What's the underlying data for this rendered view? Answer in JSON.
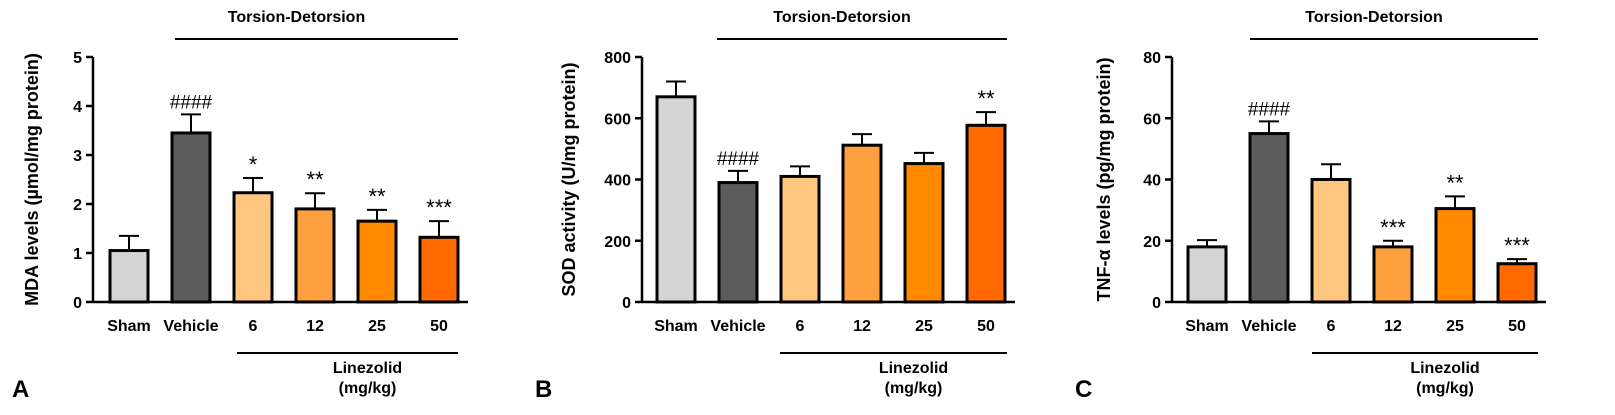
{
  "colors": {
    "sham": "#d4d4d4",
    "vehicle": "#5c5c5c",
    "dose6": "#ffc680",
    "dose12": "#ffa040",
    "dose25": "#ff8a00",
    "dose50": "#ff6a00",
    "axis": "#000000"
  },
  "groups": {
    "torsion_label": "Torsion-Detorsion",
    "drug_label_line1": "Linezolid",
    "drug_label_line2": "(mg/kg)"
  },
  "chart_data": [
    {
      "type": "bar",
      "panel": "A",
      "ylabel": "MDA levels (µmol/mg protein)",
      "categories": [
        "Sham",
        "Vehicle",
        "6",
        "12",
        "25",
        "50"
      ],
      "values": [
        1.05,
        3.45,
        2.23,
        1.9,
        1.65,
        1.32
      ],
      "errors": [
        0.3,
        0.38,
        0.3,
        0.32,
        0.23,
        0.33
      ],
      "annotations": [
        "",
        "####",
        "*",
        "**",
        "**",
        "***"
      ],
      "ylim": [
        0,
        5
      ],
      "yticks": [
        "0",
        "1",
        "2",
        "3",
        "4",
        "5"
      ],
      "grid": false
    },
    {
      "type": "bar",
      "panel": "B",
      "ylabel": "SOD activity (U/mg protein)",
      "categories": [
        "Sham",
        "Vehicle",
        "6",
        "12",
        "25",
        "50"
      ],
      "values": [
        670,
        390,
        410,
        512,
        452,
        577
      ],
      "errors": [
        50,
        38,
        33,
        36,
        35,
        43
      ],
      "annotations": [
        "",
        "####",
        "",
        "",
        "",
        "**"
      ],
      "ylim": [
        0,
        800
      ],
      "yticks": [
        "0",
        "200",
        "400",
        "600",
        "800"
      ],
      "grid": false
    },
    {
      "type": "bar",
      "panel": "C",
      "ylabel": "TNF-α levels (pg/mg protein)",
      "categories": [
        "Sham",
        "Vehicle",
        "6",
        "12",
        "25",
        "50"
      ],
      "values": [
        18,
        55,
        40,
        18,
        30.5,
        12.5
      ],
      "errors": [
        2.2,
        4,
        5,
        2,
        4,
        1.5
      ],
      "annotations": [
        "",
        "####",
        "",
        "***",
        "**",
        "***"
      ],
      "ylim": [
        0,
        80
      ],
      "yticks": [
        "0",
        "20",
        "40",
        "60",
        "80"
      ],
      "grid": false
    }
  ]
}
